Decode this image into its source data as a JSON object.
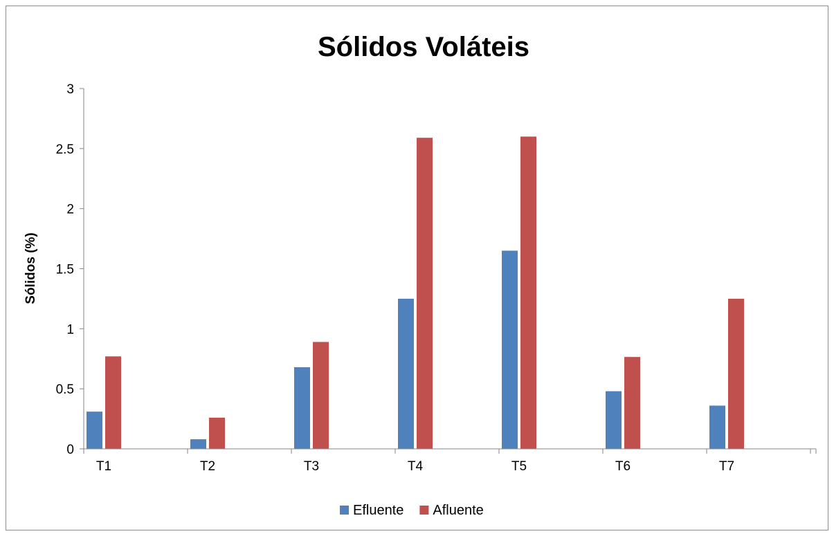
{
  "chart_data": {
    "type": "bar",
    "title": "Sólidos Voláteis",
    "xlabel": "",
    "ylabel": "Sólidos (%)",
    "categories": [
      "T1",
      "T2",
      "T3",
      "T4",
      "T5",
      "T6",
      "T7"
    ],
    "series": [
      {
        "name": "Efluente",
        "color": "#4f81bd",
        "values": [
          0.31,
          0.08,
          0.68,
          1.25,
          1.65,
          0.48,
          0.36
        ]
      },
      {
        "name": "Afluente",
        "color": "#c0504d",
        "values": [
          0.77,
          0.26,
          0.89,
          2.59,
          2.6,
          0.765,
          1.25
        ]
      }
    ],
    "ylim": [
      0,
      3
    ],
    "yticks": [
      "0",
      "0.5",
      "1",
      "1.5",
      "2",
      "2.5",
      "3"
    ],
    "grid": false,
    "legend": "bottom"
  }
}
